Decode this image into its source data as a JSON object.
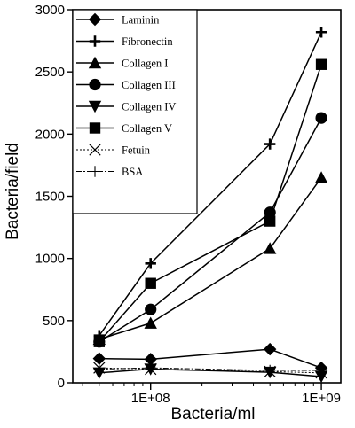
{
  "chart_data": {
    "type": "line",
    "xlabel": "Bacteria/ml",
    "ylabel": "Bacteria/field",
    "x_scale": "log",
    "xlim": [
      35000000,
      1300000000
    ],
    "ylim": [
      0,
      3000
    ],
    "x_ticks": [
      100000000,
      1000000000
    ],
    "x_tick_labels": [
      "1E+08",
      "1E+09"
    ],
    "y_ticks": [
      0,
      500,
      1000,
      1500,
      2000,
      2500,
      3000
    ],
    "y_tick_labels": [
      "0",
      "500",
      "1000",
      "1500",
      "2000",
      "2500",
      "3000"
    ],
    "grid": false,
    "legend_position": "top-left",
    "x": [
      50000000,
      100000000,
      500000000,
      1000000000
    ],
    "series": [
      {
        "name": "Laminin",
        "marker": "diamond",
        "line": "solid",
        "values": [
          195,
          190,
          270,
          120
        ]
      },
      {
        "name": "Fibronectin",
        "marker": "plus",
        "line": "solid",
        "values": [
          380,
          960,
          1920,
          2820
        ]
      },
      {
        "name": "Collagen I",
        "marker": "triangle-up",
        "line": "solid",
        "values": [
          350,
          480,
          1080,
          1650
        ]
      },
      {
        "name": "Collagen III",
        "marker": "circle",
        "line": "solid",
        "values": [
          330,
          590,
          1370,
          2130
        ]
      },
      {
        "name": "Collagen IV",
        "marker": "triangle-down",
        "line": "solid",
        "values": [
          80,
          110,
          85,
          50
        ]
      },
      {
        "name": "Collagen V",
        "marker": "square",
        "line": "solid",
        "values": [
          330,
          800,
          1300,
          2560
        ]
      },
      {
        "name": "Fetuin",
        "marker": "x",
        "line": "dotted",
        "values": [
          120,
          110,
          90,
          80
        ]
      },
      {
        "name": "BSA",
        "marker": "plus-thin",
        "line": "dashdot",
        "values": [
          110,
          120,
          100,
          100
        ]
      }
    ]
  }
}
